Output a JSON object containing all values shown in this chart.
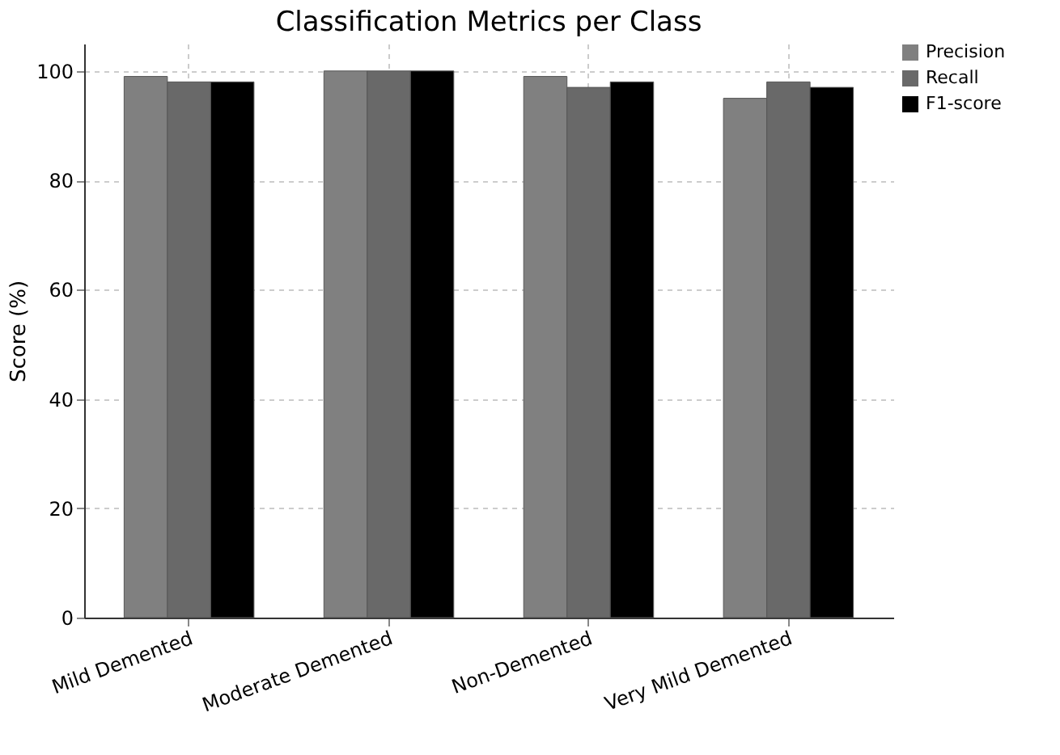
{
  "chart_data": {
    "type": "bar",
    "title": "Classification Metrics per Class",
    "ylabel": "Score (%)",
    "categories": [
      "Mild Demented",
      "Moderate Demented",
      "Non-Demented",
      "Very Mild Demented"
    ],
    "series": [
      {
        "name": "Precision",
        "color": "#808080",
        "values": [
          99,
          100,
          99,
          95
        ]
      },
      {
        "name": "Recall",
        "color": "#696969",
        "values": [
          98,
          100,
          97,
          98
        ]
      },
      {
        "name": "F1-score",
        "color": "#000000",
        "values": [
          98,
          100,
          98,
          97
        ]
      }
    ],
    "ylim": [
      0,
      105
    ],
    "yticks": [
      0,
      20,
      40,
      60,
      80,
      100
    ],
    "grid": true,
    "legend": "top right"
  }
}
